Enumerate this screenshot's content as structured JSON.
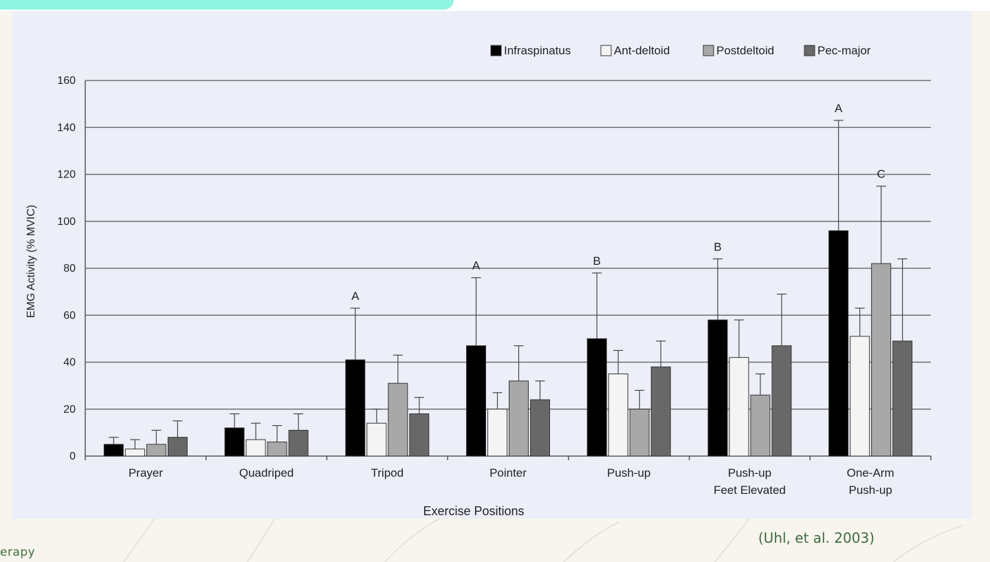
{
  "chart_data": {
    "type": "bar",
    "xlabel": "Exercise Positions",
    "ylabel": "EMG Activity (% MVIC)",
    "ylim": [
      0,
      160
    ],
    "yticks": [
      0,
      20,
      40,
      60,
      80,
      100,
      120,
      140,
      160
    ],
    "grid": true,
    "legend_position": "top-right",
    "categories": [
      [
        "Prayer"
      ],
      [
        "Quadriped"
      ],
      [
        "Tripod"
      ],
      [
        "Pointer"
      ],
      [
        "Push-up"
      ],
      [
        "Push-up",
        "Feet Elevated"
      ],
      [
        "One-Arm",
        "Push-up"
      ]
    ],
    "series": [
      {
        "name": "Infraspinatus",
        "color": "#000000",
        "values": [
          5,
          12,
          41,
          47,
          50,
          58,
          96
        ],
        "error": [
          3,
          6,
          22,
          29,
          28,
          26,
          47
        ]
      },
      {
        "name": "Ant-deltoid",
        "color": "#f4f4f4",
        "values": [
          3,
          7,
          14,
          20,
          35,
          42,
          51
        ],
        "error": [
          4,
          7,
          6,
          7,
          10,
          16,
          12
        ]
      },
      {
        "name": "Postdeltoid",
        "color": "#a8a8a8",
        "values": [
          5,
          6,
          31,
          32,
          20,
          26,
          82
        ],
        "error": [
          6,
          7,
          12,
          15,
          8,
          9,
          33
        ]
      },
      {
        "name": "Pec-major",
        "color": "#686868",
        "values": [
          8,
          11,
          18,
          24,
          38,
          47,
          49
        ],
        "error": [
          7,
          7,
          7,
          8,
          11,
          22,
          35
        ]
      }
    ],
    "annotations": [
      {
        "category": 2,
        "series": 0,
        "text": "A"
      },
      {
        "category": 3,
        "series": 0,
        "text": "A"
      },
      {
        "category": 4,
        "series": 0,
        "text": "B"
      },
      {
        "category": 5,
        "series": 0,
        "text": "B"
      },
      {
        "category": 6,
        "series": 0,
        "text": "A"
      },
      {
        "category": 6,
        "series": 2,
        "text": "C"
      }
    ]
  },
  "citation": "(Uhl, et al. 2003)",
  "brand_fragment": "erapy",
  "colors": {
    "accent": "#8ff5e2",
    "panel": "#eceef8",
    "footer": "#f7f5ee",
    "citation_text": "#3f6b41"
  }
}
